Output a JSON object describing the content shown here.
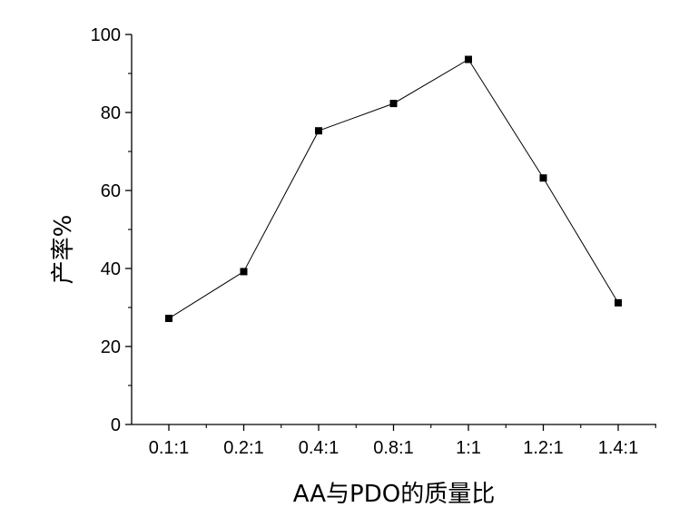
{
  "chart_data": {
    "type": "line",
    "title": "",
    "xlabel": "AA与PDO的质量比",
    "ylabel": "产率%",
    "categories": [
      "0.1:1",
      "0.2:1",
      "0.4:1",
      "0.8:1",
      "1:1",
      "1.2:1",
      "1.4:1"
    ],
    "series": [
      {
        "values": [
          27.2,
          39.2,
          75.3,
          82.3,
          93.6,
          63.2,
          31.2
        ]
      }
    ],
    "ylim": [
      0,
      100
    ],
    "yticks": [
      0,
      20,
      40,
      60,
      80,
      100
    ],
    "grid": false,
    "legend": "none",
    "marker": "square",
    "colors": {
      "line": "#000000",
      "marker": "#000000",
      "axis": "#000000"
    }
  }
}
